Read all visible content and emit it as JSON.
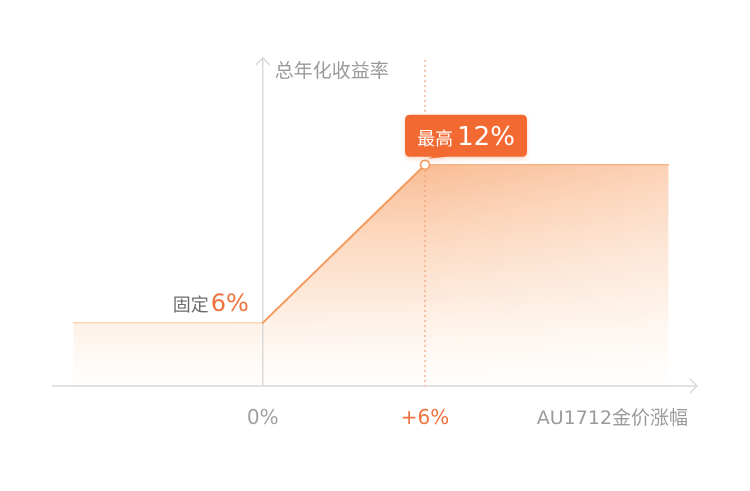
{
  "chart_data": {
    "type": "line",
    "ylabel": "总年化收益率",
    "xlabel": "AU1712金价涨幅",
    "x_ticks": [
      {
        "x": 0,
        "label": "0%",
        "color": "#a0a0a0"
      },
      {
        "x": 6,
        "label": "+6%",
        "color": "#f0723c"
      }
    ],
    "series": [
      {
        "points": [
          {
            "x": -7,
            "y": 6
          },
          {
            "x": 0,
            "y": 6
          },
          {
            "x": 6,
            "y": 12
          },
          {
            "x": 15,
            "y": 12
          }
        ]
      }
    ],
    "xlim": [
      -7.5,
      15.8
    ],
    "ylim": [
      3.6,
      15.6
    ],
    "annotations": {
      "floor": {
        "prefix": "固定",
        "value": "6%",
        "x": 0,
        "y": 6
      },
      "cap": {
        "prefix": "最高",
        "value": "12%",
        "x": 6,
        "y": 12
      }
    },
    "colors": {
      "line": "#f49a5c",
      "fill_top": "#f8a56f",
      "fill_bottom": "#fff7ef",
      "badge": "#f26a33",
      "axis": "#d8d8d8",
      "guide": "#f1a176",
      "accent": "#f0723c"
    }
  }
}
